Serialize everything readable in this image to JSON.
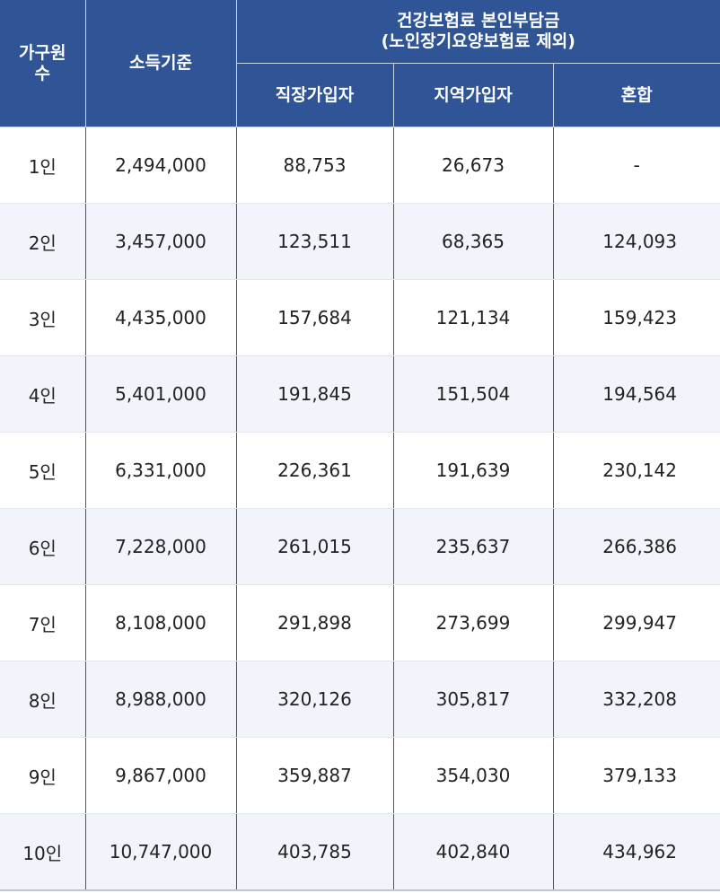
{
  "header": {
    "household": "가구원\n수",
    "income": "소득기준",
    "premium_group": "건강보험료 본인부담금\n(노인장기요양보험료 제외)",
    "employee": "직장가입자",
    "regional": "지역가입자",
    "mixed": "혼합"
  },
  "rows": [
    {
      "household": "1인",
      "income": "2,494,000",
      "employee": "88,753",
      "regional": "26,673",
      "mixed": "-"
    },
    {
      "household": "2인",
      "income": "3,457,000",
      "employee": "123,511",
      "regional": "68,365",
      "mixed": "124,093"
    },
    {
      "household": "3인",
      "income": "4,435,000",
      "employee": "157,684",
      "regional": "121,134",
      "mixed": "159,423"
    },
    {
      "household": "4인",
      "income": "5,401,000",
      "employee": "191,845",
      "regional": "151,504",
      "mixed": "194,564"
    },
    {
      "household": "5인",
      "income": "6,331,000",
      "employee": "226,361",
      "regional": "191,639",
      "mixed": "230,142"
    },
    {
      "household": "6인",
      "income": "7,228,000",
      "employee": "261,015",
      "regional": "235,637",
      "mixed": "266,386"
    },
    {
      "household": "7인",
      "income": "8,108,000",
      "employee": "291,898",
      "regional": "273,699",
      "mixed": "299,947"
    },
    {
      "household": "8인",
      "income": "8,988,000",
      "employee": "320,126",
      "regional": "305,817",
      "mixed": "332,208"
    },
    {
      "household": "9인",
      "income": "9,867,000",
      "employee": "359,887",
      "regional": "354,030",
      "mixed": "379,133"
    },
    {
      "household": "10인",
      "income": "10,747,000",
      "employee": "403,785",
      "regional": "402,840",
      "mixed": "434,962"
    }
  ],
  "colors": {
    "header_bg": "#2f5596",
    "alt_row_bg": "#f1f4fa"
  }
}
